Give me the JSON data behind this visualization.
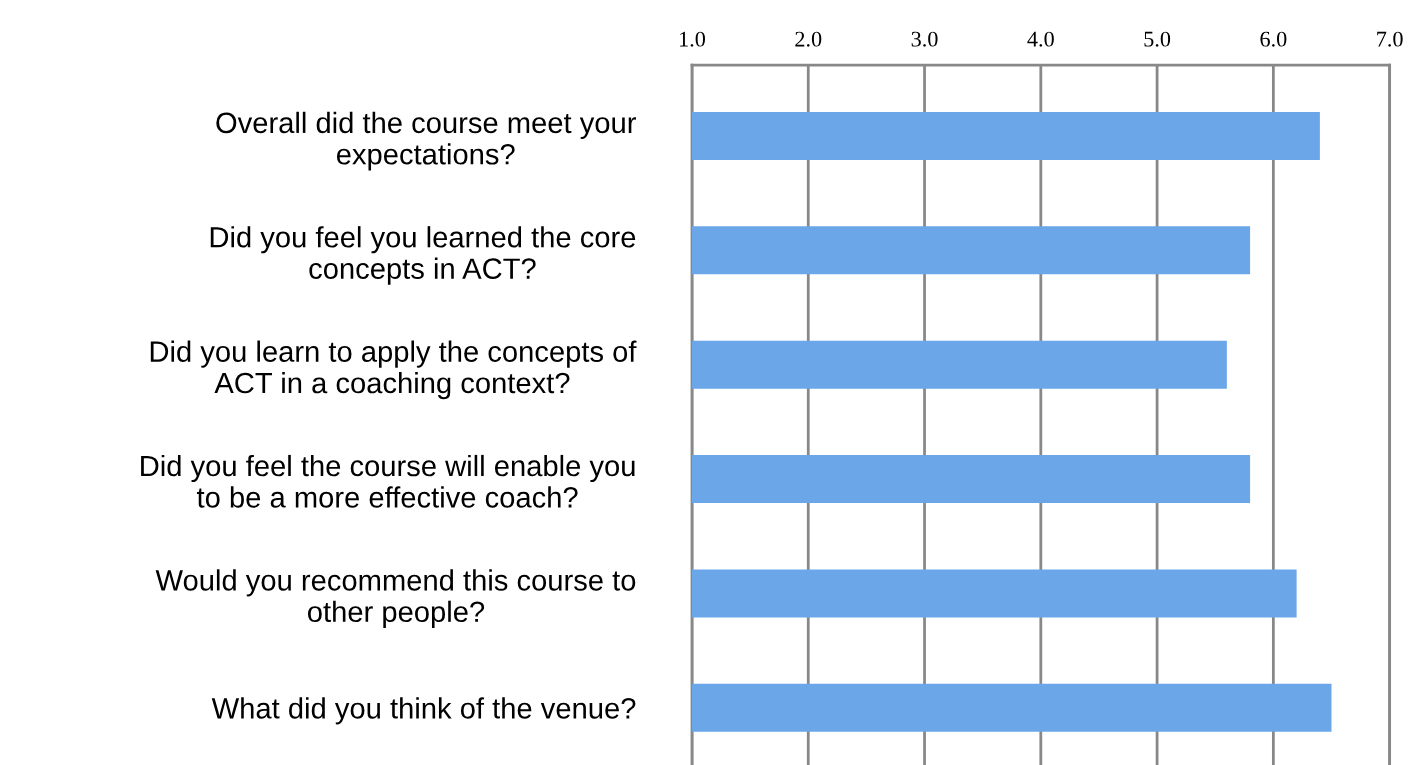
{
  "chart_data": {
    "type": "bar",
    "orientation": "horizontal",
    "categories": [
      "Overall did the course meet your\nexpectations?",
      "Did you feel you learned the core\nconcepts in ACT?",
      "Did you learn to apply the concepts of\nACT in a coaching context?",
      "Did you feel the course will enable you\nto be a more effective coach?",
      "Would you recommend this course to\nother people?",
      "What did you think of the venue?"
    ],
    "values": [
      6.4,
      5.8,
      5.6,
      5.8,
      6.2,
      6.5
    ],
    "color": "#6aa6e8",
    "xlim": [
      1,
      7
    ],
    "xticks": [
      {
        "value": 1,
        "label": "1.0"
      },
      {
        "value": 2,
        "label": "2.0"
      },
      {
        "value": 3,
        "label": "3.0"
      },
      {
        "value": 4,
        "label": "4.0"
      },
      {
        "value": 5,
        "label": "5.0"
      },
      {
        "value": 6,
        "label": "6.0"
      },
      {
        "value": 7,
        "label": "7.0"
      }
    ],
    "grid": "x",
    "legend": false
  }
}
